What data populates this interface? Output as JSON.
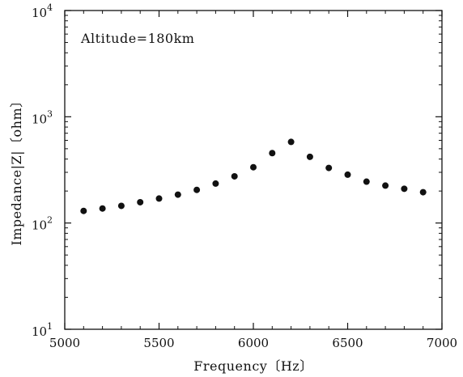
{
  "chart_data": {
    "type": "scatter",
    "xlabel": "Frequency〔Hz〕",
    "ylabel": "Impedance|Z|〔ohm〕",
    "annotation": "Altitude=180km",
    "xlim": [
      5000,
      7000
    ],
    "ylim": [
      10,
      10000
    ],
    "y_scale": "log",
    "grid": false,
    "legend": "none",
    "x_ticks": [
      {
        "value": 5000,
        "label": "5000"
      },
      {
        "value": 5500,
        "label": "5500"
      },
      {
        "value": 6000,
        "label": "6000"
      },
      {
        "value": 6500,
        "label": "6500"
      },
      {
        "value": 7000,
        "label": "7000"
      }
    ],
    "y_ticks": [
      {
        "value": 10,
        "mantissa": "10",
        "exp": "1"
      },
      {
        "value": 100,
        "mantissa": "10",
        "exp": "2"
      },
      {
        "value": 1000,
        "mantissa": "10",
        "exp": "3"
      },
      {
        "value": 10000,
        "mantissa": "10",
        "exp": "4"
      }
    ],
    "series": [
      {
        "x": [
          5100,
          5200,
          5300,
          5400,
          5500,
          5600,
          5700,
          5800,
          5900,
          6000,
          6100,
          6200,
          6300,
          6400,
          6500,
          6600,
          6700,
          6800,
          6900
        ],
        "y": [
          130,
          137,
          145,
          157,
          170,
          185,
          205,
          235,
          275,
          335,
          455,
          580,
          420,
          330,
          285,
          245,
          225,
          210,
          195
        ]
      }
    ],
    "marker_color": "#111111"
  }
}
